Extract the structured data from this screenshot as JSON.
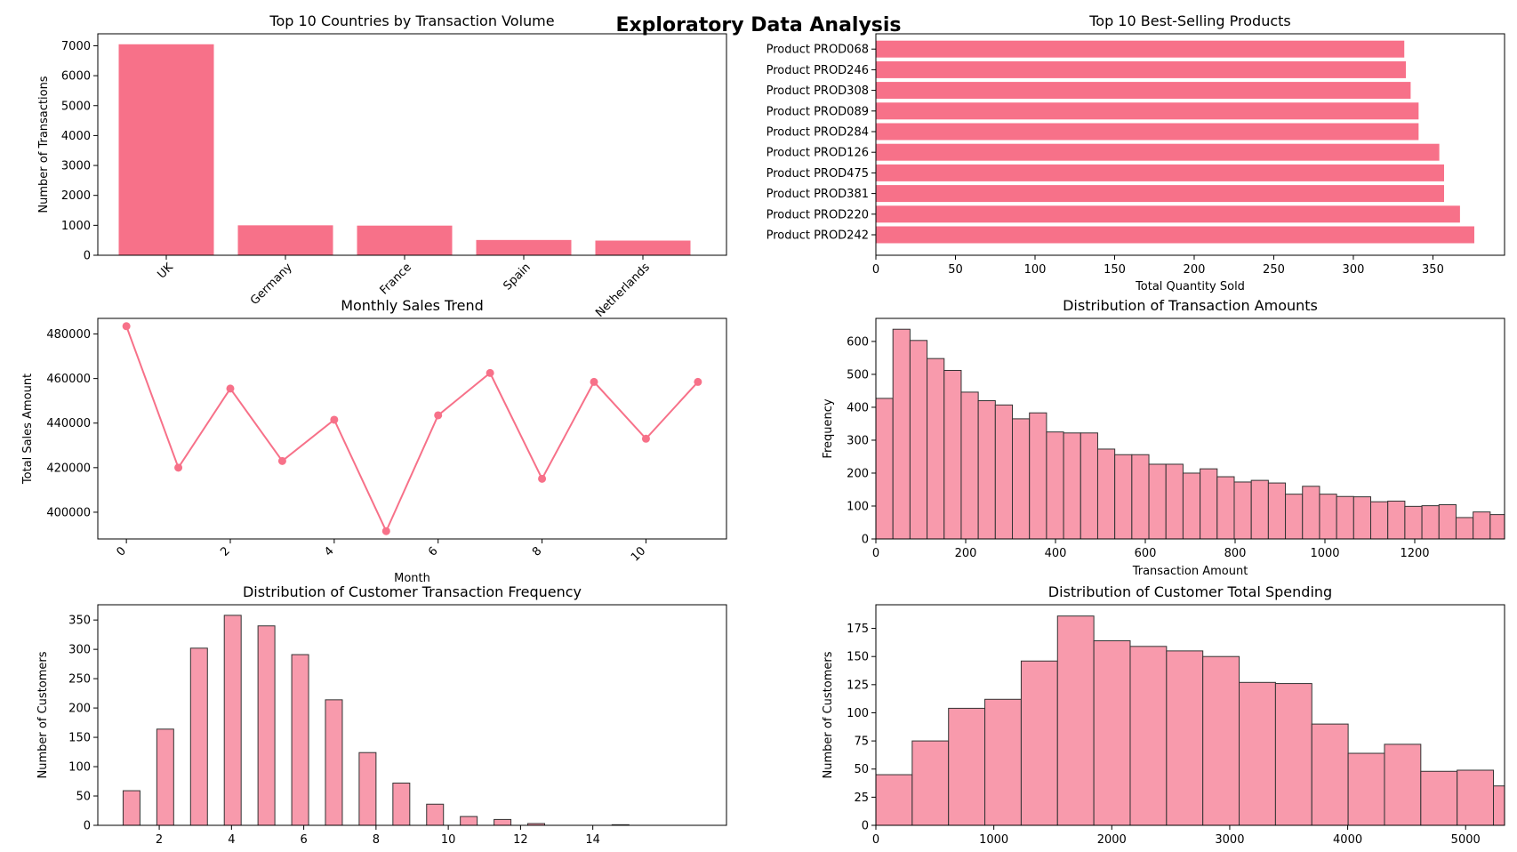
{
  "page": {
    "title": "Exploratory Data Analysis"
  },
  "colors": {
    "bar": "#f77189",
    "hist": "#f89aac",
    "edge": "#333333",
    "axis": "#000000"
  },
  "chart_data": [
    {
      "id": "countries",
      "type": "bar",
      "title": "Top 10 Countries by Transaction Volume",
      "xlabel": "",
      "ylabel": "Number of Transactions",
      "categories": [
        "UK",
        "Germany",
        "France",
        "Spain",
        "Netherlands"
      ],
      "values": [
        7050,
        1000,
        990,
        510,
        490
      ],
      "ylim": [
        0,
        7400
      ],
      "yticks": [
        0,
        1000,
        2000,
        3000,
        4000,
        5000,
        6000,
        7000
      ],
      "grid": false
    },
    {
      "id": "products",
      "type": "bar",
      "orientation": "horizontal",
      "title": "Top 10 Best-Selling Products",
      "xlabel": "Total Quantity Sold",
      "ylabel": "",
      "categories": [
        "Product PROD242",
        "Product PROD220",
        "Product PROD381",
        "Product PROD475",
        "Product PROD126",
        "Product PROD284",
        "Product PROD089",
        "Product PROD308",
        "Product PROD246",
        "Product PROD068"
      ],
      "values": [
        376,
        367,
        357,
        357,
        354,
        341,
        341,
        336,
        333,
        332
      ],
      "xlim": [
        0,
        395
      ],
      "xticks": [
        0,
        50,
        100,
        150,
        200,
        250,
        300,
        350
      ],
      "grid": false
    },
    {
      "id": "monthly",
      "type": "line",
      "title": "Monthly Sales Trend",
      "xlabel": "Month",
      "ylabel": "Total Sales Amount",
      "x": [
        0,
        1,
        2,
        3,
        4,
        5,
        6,
        7,
        8,
        9,
        10,
        11
      ],
      "values": [
        483500,
        420000,
        455500,
        423000,
        441500,
        391500,
        443500,
        462500,
        415000,
        458500,
        433000,
        458500
      ],
      "xlim": [
        -0.55,
        11.55
      ],
      "ylim": [
        388000,
        487000
      ],
      "xticks": [
        0,
        2,
        4,
        6,
        8,
        10
      ],
      "yticks": [
        400000,
        420000,
        440000,
        460000,
        480000
      ],
      "grid": false
    },
    {
      "id": "amounts",
      "type": "bar",
      "histogram": true,
      "title": "Distribution of Transaction Amounts",
      "xlabel": "Transaction Amount",
      "ylabel": "Frequency",
      "bin_width": 38,
      "x_start": 0,
      "values": [
        427,
        637,
        603,
        548,
        512,
        446,
        420,
        407,
        365,
        383,
        325,
        322,
        322,
        273,
        256,
        256,
        227,
        227,
        200,
        213,
        189,
        173,
        178,
        170,
        136,
        160,
        136,
        129,
        128,
        113,
        115,
        99,
        101,
        104,
        65,
        82,
        74
      ],
      "xlim": [
        0,
        1400
      ],
      "ylim": [
        0,
        670
      ],
      "xticks": [
        0,
        200,
        400,
        600,
        800,
        1000,
        1200
      ],
      "yticks": [
        0,
        100,
        200,
        300,
        400,
        500,
        600
      ],
      "grid": false
    },
    {
      "id": "frequency",
      "type": "bar",
      "histogram": true,
      "title": "Distribution of Customer Transaction Frequency",
      "xlabel": "Number of Transactions",
      "ylabel": "Number of Customers",
      "bin_width": 0.467,
      "bin_starts": [
        1,
        1.933,
        2.867,
        3.8,
        4.733,
        5.667,
        6.6,
        7.533,
        8.467,
        9.4,
        10.333,
        11.267,
        12.2,
        13.133,
        14.533
      ],
      "values": [
        59,
        164,
        302,
        358,
        340,
        291,
        214,
        124,
        72,
        36,
        15,
        10,
        3,
        0,
        1
      ],
      "xlim": [
        0.3,
        17.7
      ],
      "ylim": [
        0,
        376
      ],
      "xticks": [
        2,
        4,
        6,
        8,
        10,
        12,
        14
      ],
      "yticks": [
        0,
        50,
        100,
        150,
        200,
        250,
        300,
        350
      ],
      "grid": false
    },
    {
      "id": "spending",
      "type": "bar",
      "histogram": true,
      "title": "Distribution of Customer Total Spending",
      "xlabel": "Total Spending",
      "ylabel": "Number of Customers",
      "bin_width": 308,
      "x_start": 0,
      "values": [
        45,
        75,
        104,
        112,
        146,
        186,
        164,
        159,
        155,
        150,
        127,
        126,
        90,
        64,
        72,
        48,
        49,
        35
      ],
      "xlim": [
        0,
        5330
      ],
      "ylim": [
        0,
        196
      ],
      "xticks": [
        0,
        1000,
        2000,
        3000,
        4000,
        5000
      ],
      "yticks": [
        0,
        25,
        50,
        75,
        100,
        125,
        150,
        175
      ],
      "grid": false
    }
  ]
}
